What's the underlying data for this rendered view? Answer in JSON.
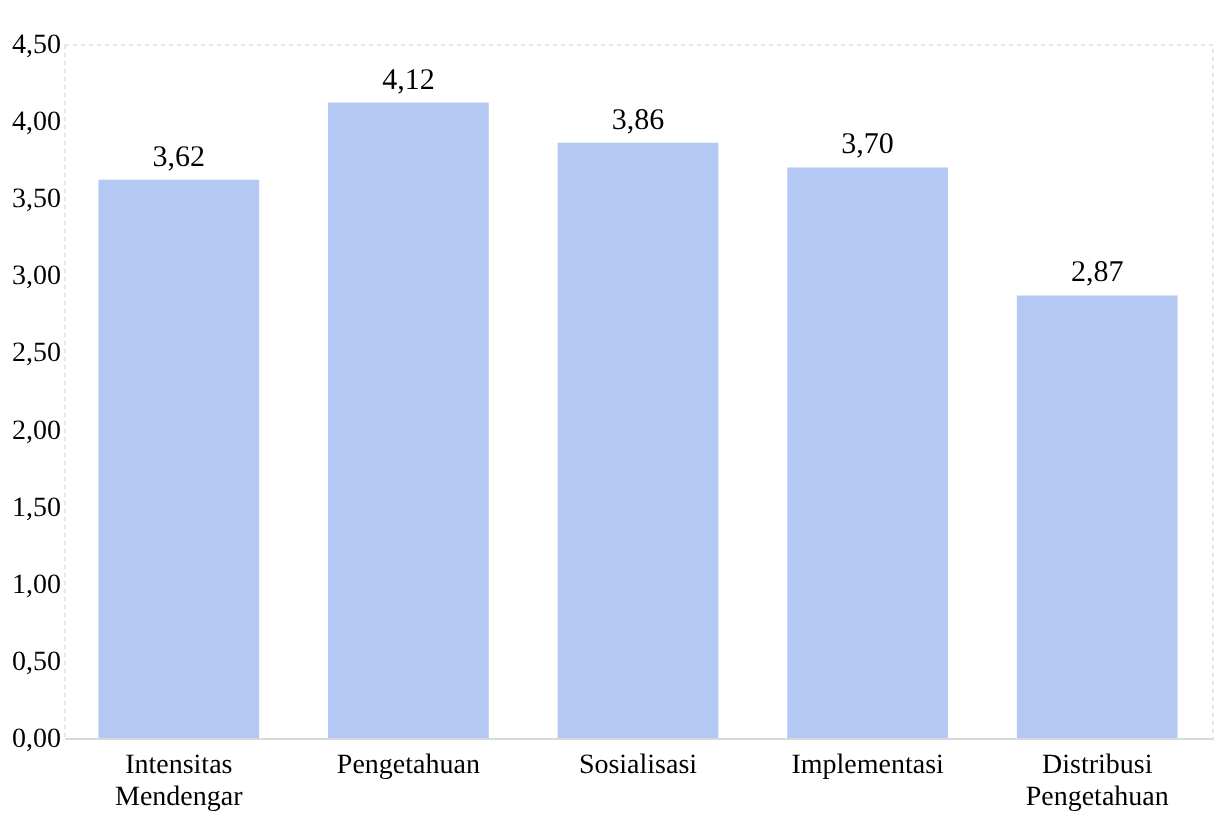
{
  "chart_data": {
    "type": "bar",
    "categories": [
      "Intensitas Mendengar",
      "Pengetahuan",
      "Sosialisasi",
      "Implementasi",
      "Distribusi Pengetahuan"
    ],
    "values": [
      3.62,
      4.12,
      3.86,
      3.7,
      2.87
    ],
    "value_labels": [
      "3,62",
      "4,12",
      "3,86",
      "3,70",
      "2,87"
    ],
    "color": "#b4c8f4",
    "ylim": [
      0,
      4.5
    ],
    "yticks": [
      {
        "value": 0,
        "label": "0,00"
      },
      {
        "value": 0.5,
        "label": "0,50"
      },
      {
        "value": 1,
        "label": "1,00"
      },
      {
        "value": 1.5,
        "label": "1,50"
      },
      {
        "value": 2,
        "label": "2,00"
      },
      {
        "value": 2.5,
        "label": "2,50"
      },
      {
        "value": 3,
        "label": "3,00"
      },
      {
        "value": 3.5,
        "label": "3,50"
      },
      {
        "value": 4,
        "label": "4,00"
      },
      {
        "value": 4.5,
        "label": "4,50"
      }
    ],
    "grid": false
  }
}
